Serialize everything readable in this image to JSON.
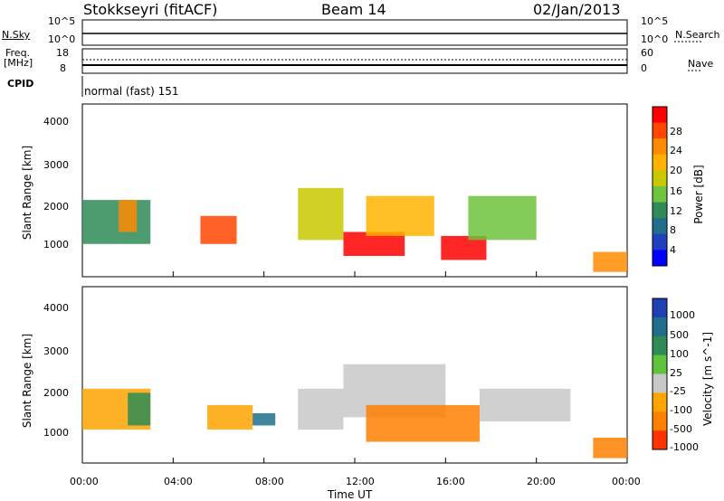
{
  "header": {
    "station": "Stokkseyri (fitACF)",
    "beam": "Beam 14",
    "date": "02/Jan/2013"
  },
  "strip1": {
    "left_label": "N.Sky",
    "right_label": "N.Search",
    "ticks_left": [
      "10^5",
      "10^0"
    ],
    "ticks_right": [
      "10^5",
      "10^0"
    ]
  },
  "strip2": {
    "left_label_top": "Freq.",
    "left_label_unit": "[MHz]",
    "right_label": "Nave",
    "ticks_left": [
      "18",
      "8"
    ],
    "ticks_right": [
      "60",
      "0"
    ]
  },
  "strip3": {
    "left_label": "CPID",
    "mode_text": "normal (fast) 151"
  },
  "panels": {
    "ylabel": "Slant Range [km]",
    "yticks": [
      "4000",
      "3000",
      "2000",
      "1000"
    ]
  },
  "power_colorbar": {
    "label": "Power [dB]",
    "ticks": [
      "28",
      "24",
      "20",
      "16",
      "12",
      "8",
      "4"
    ],
    "colors": [
      "#ff0000",
      "#ff4500",
      "#ff8c00",
      "#ffb300",
      "#c8c800",
      "#6fc33d",
      "#2e8b57",
      "#1f6e8c",
      "#2040c0",
      "#0000ff"
    ]
  },
  "velocity_colorbar": {
    "label": "Velocity [m s^-1]",
    "ticks": [
      "1000",
      "500",
      "100",
      "25",
      "-25",
      "-100",
      "-500",
      "-1000"
    ],
    "colors": [
      "#1f3fb5",
      "#1f6e8c",
      "#2e8b57",
      "#5fc33d",
      "#c8c8c8",
      "#ffa500",
      "#ff7f00",
      "#ff3300"
    ]
  },
  "xaxis": {
    "ticks": [
      "00:00",
      "04:00",
      "08:00",
      "12:00",
      "16:00",
      "20:00",
      "00:00"
    ],
    "label": "Time UT"
  },
  "chart_data": {
    "type": "heatmap",
    "title": "Stokkseyri (fitACF) Beam 14 02/Jan/2013",
    "xlabel": "Time UT",
    "ylabel": "Slant Range [km]",
    "x_range_hours": [
      0,
      24
    ],
    "y_range_km": [
      180,
      4500
    ],
    "panels": [
      {
        "quantity": "Power [dB]",
        "color_range": [
          0,
          30
        ],
        "regions": [
          {
            "t0": 0.0,
            "t1": 3.0,
            "r0": 1000,
            "r1": 2100,
            "level": 12
          },
          {
            "t0": 1.6,
            "t1": 2.4,
            "r0": 1300,
            "r1": 2100,
            "level": 22
          },
          {
            "t0": 5.2,
            "t1": 6.8,
            "r0": 1000,
            "r1": 1700,
            "level": 27
          },
          {
            "t0": 9.5,
            "t1": 11.5,
            "r0": 1100,
            "r1": 2400,
            "level": 16
          },
          {
            "t0": 11.5,
            "t1": 14.2,
            "r0": 700,
            "r1": 1300,
            "level": 28
          },
          {
            "t0": 12.5,
            "t1": 15.5,
            "r0": 1200,
            "r1": 2200,
            "level": 20
          },
          {
            "t0": 15.8,
            "t1": 17.8,
            "r0": 600,
            "r1": 1200,
            "level": 28
          },
          {
            "t0": 17.0,
            "t1": 20.0,
            "r0": 1100,
            "r1": 2200,
            "level": 14
          },
          {
            "t0": 22.5,
            "t1": 24.0,
            "r0": 300,
            "r1": 800,
            "level": 24
          }
        ]
      },
      {
        "quantity": "Velocity [m s^-1]",
        "color_range": [
          -1000,
          1000
        ],
        "regions": [
          {
            "t0": 0.0,
            "t1": 3.0,
            "r0": 1000,
            "r1": 2000,
            "level": -100
          },
          {
            "t0": 2.0,
            "t1": 3.0,
            "r0": 1100,
            "r1": 1900,
            "level": 100
          },
          {
            "t0": 5.5,
            "t1": 7.5,
            "r0": 1000,
            "r1": 1600,
            "level": -100
          },
          {
            "t0": 7.5,
            "t1": 8.5,
            "r0": 1100,
            "r1": 1400,
            "level": 500
          },
          {
            "t0": 9.5,
            "t1": 11.5,
            "r0": 1000,
            "r1": 2000,
            "level": 0
          },
          {
            "t0": 11.5,
            "t1": 16.0,
            "r0": 1300,
            "r1": 2600,
            "level": 0
          },
          {
            "t0": 12.5,
            "t1": 17.5,
            "r0": 700,
            "r1": 1600,
            "level": -500
          },
          {
            "t0": 17.5,
            "t1": 21.5,
            "r0": 1200,
            "r1": 2000,
            "level": 0
          },
          {
            "t0": 22.5,
            "t1": 24.0,
            "r0": 300,
            "r1": 800,
            "level": -500
          }
        ]
      }
    ]
  }
}
